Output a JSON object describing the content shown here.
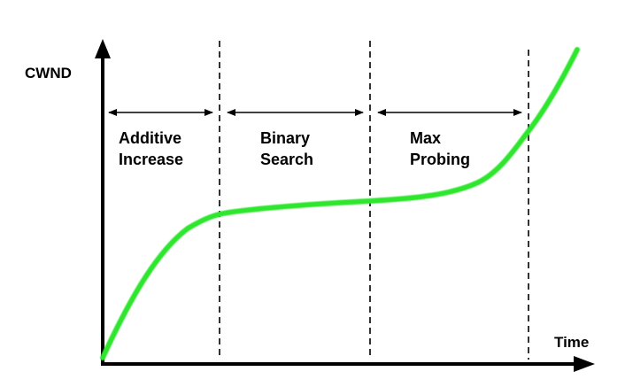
{
  "diagram": {
    "y_axis_label": "CWND",
    "x_axis_label": "Time",
    "phases": [
      {
        "line1": "Additive",
        "line2": "Increase"
      },
      {
        "line1": "Binary",
        "line2": "Search"
      },
      {
        "line1": "Max",
        "line2": "Probing"
      }
    ],
    "colors": {
      "curve": "#2ee62e",
      "axes": "#000000"
    }
  }
}
